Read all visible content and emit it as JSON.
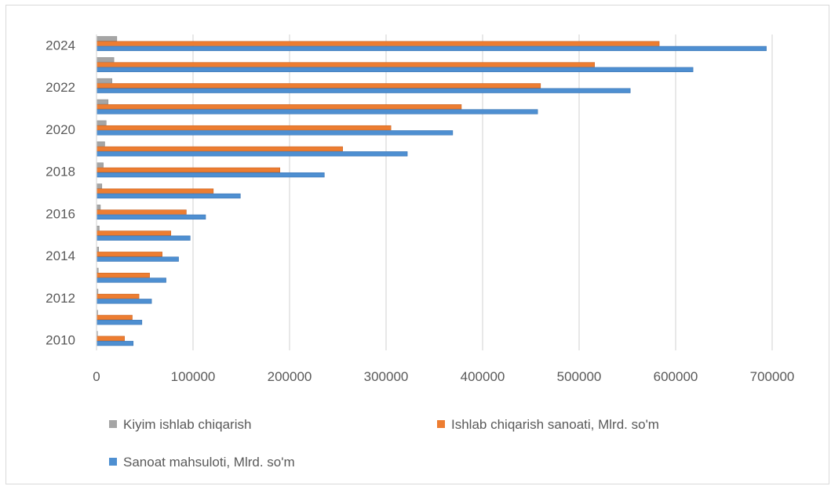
{
  "chart_data": {
    "type": "bar",
    "orientation": "horizontal",
    "categories": [
      "2010",
      "2011",
      "2012",
      "2013",
      "2014",
      "2015",
      "2016",
      "2017",
      "2018",
      "2019",
      "2020",
      "2021",
      "2022",
      "2023",
      "2024"
    ],
    "y_tick_labels": [
      "2010",
      "2012",
      "2014",
      "2016",
      "2018",
      "2020",
      "2022",
      "2024"
    ],
    "x_tick_labels": [
      "0",
      "100000",
      "200000",
      "300000",
      "400000",
      "500000",
      "600000",
      "700000"
    ],
    "xlim": [
      0,
      700000
    ],
    "grid": true,
    "legend_position": "bottom",
    "series": [
      {
        "name": "Kiyim ishlab chiqarish",
        "color": "#a5a5a5",
        "values": [
          1000,
          1200,
          1500,
          1800,
          2200,
          2800,
          4000,
          5500,
          7000,
          8500,
          10000,
          12000,
          16000,
          18000,
          21000
        ]
      },
      {
        "name": "Ishlab chiqarish sanoati, Mlrd. so'm",
        "color": "#ed7d31",
        "values": [
          29000,
          37000,
          44000,
          55000,
          68000,
          77000,
          93000,
          121000,
          190000,
          255000,
          305000,
          378000,
          460000,
          516000,
          583000
        ]
      },
      {
        "name": "Sanoat mahsuloti, Mlrd. so'm",
        "color": "#4e8fd1",
        "values": [
          38000,
          47000,
          57000,
          72000,
          85000,
          97000,
          113000,
          149000,
          236000,
          322000,
          369000,
          457000,
          553000,
          618000,
          694000
        ]
      }
    ],
    "legend": [
      {
        "label": "Kiyim ishlab chiqarish",
        "color": "#a5a5a5"
      },
      {
        "label": "Ishlab chiqarish sanoati, Mlrd. so'm",
        "color": "#ed7d31"
      },
      {
        "label": "Sanoat mahsuloti, Mlrd. so'm",
        "color": "#4e8fd1"
      }
    ]
  }
}
